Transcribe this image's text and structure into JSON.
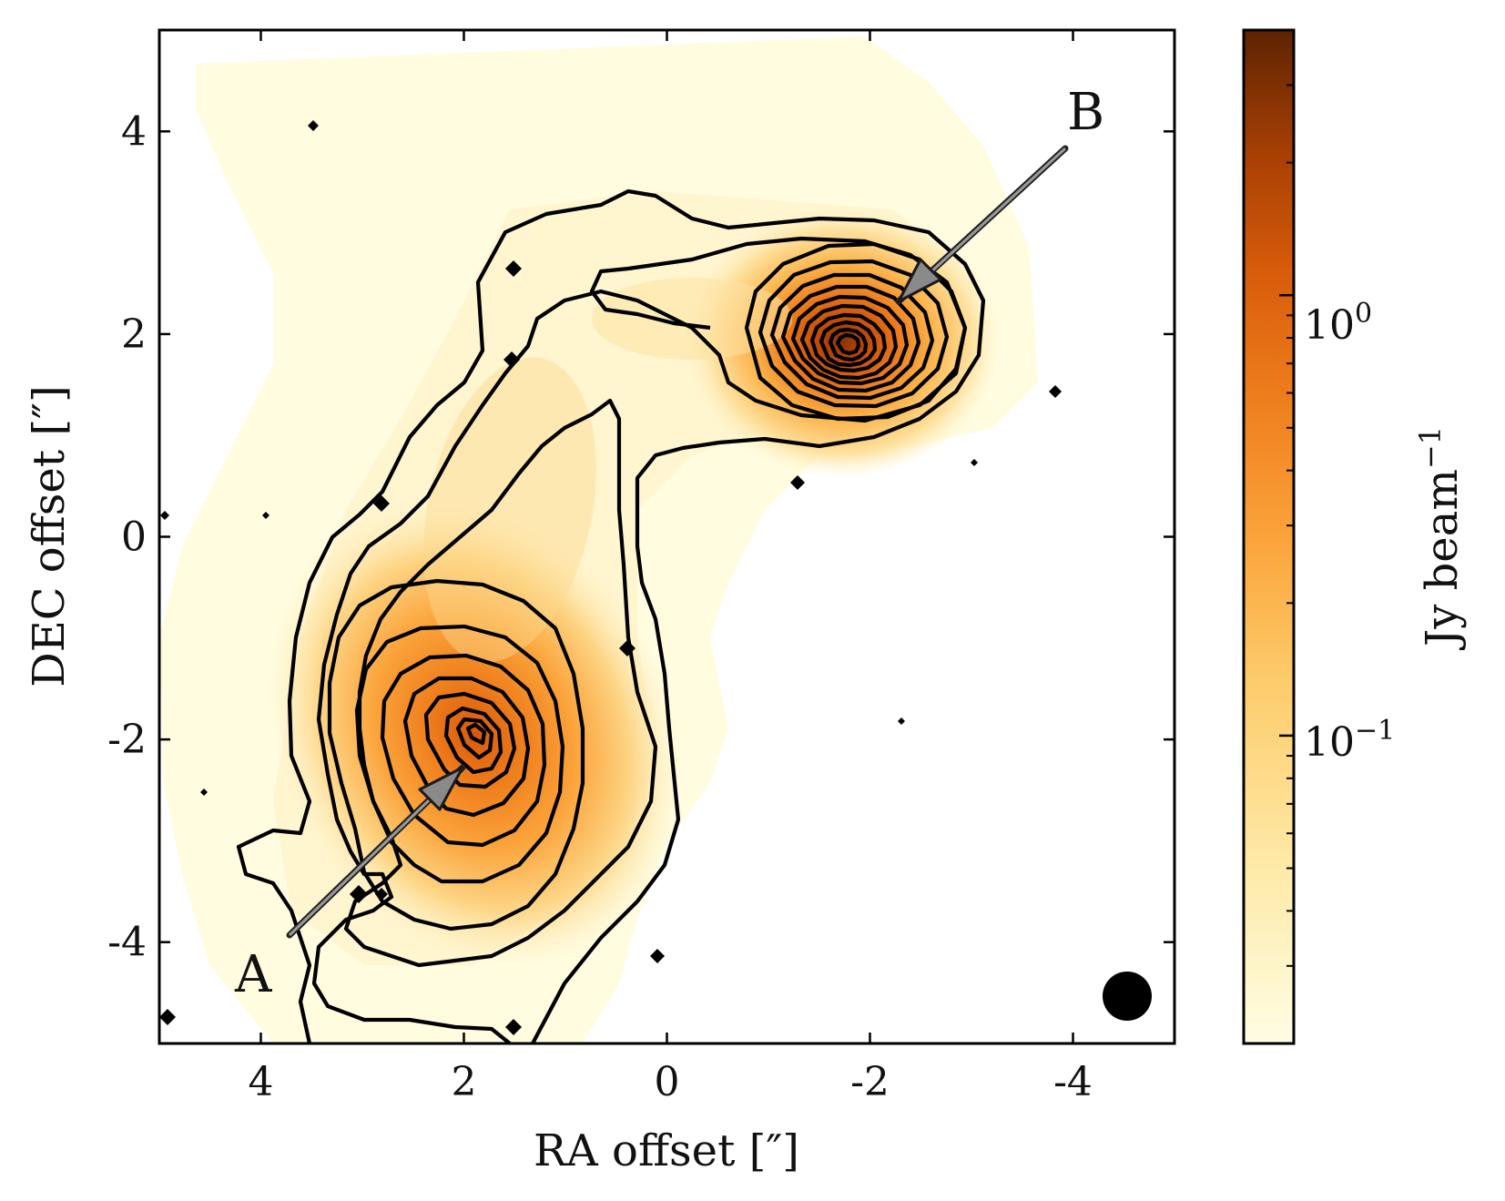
{
  "chart_data": {
    "type": "heatmap",
    "title": "",
    "xlabel": "RA offset [″]",
    "ylabel": "DEC offset [″]",
    "xlim": [
      5,
      -5
    ],
    "ylim": [
      -5,
      5
    ],
    "x_ticks": [
      4,
      2,
      0,
      -2,
      -4
    ],
    "y_ticks": [
      4,
      2,
      0,
      -2,
      -4
    ],
    "x_tick_labels": [
      "4",
      "2",
      "0",
      "-2",
      "-4"
    ],
    "y_tick_labels": [
      "4",
      "2",
      "0",
      "-2",
      "-4"
    ],
    "colormap": "YlOrBr",
    "colormap_stops": [
      "#fffde3",
      "#fee9a6",
      "#fdcb6a",
      "#fba33a",
      "#ee7d1c",
      "#d85c0b",
      "#a63f04",
      "#5e2303"
    ],
    "colorbar": {
      "label": "Jy beam−1",
      "label_main": "Jy beam",
      "label_exponent": "−1",
      "scale": "log",
      "range": [
        0.02,
        4.0
      ],
      "major_ticks": [
        0.1,
        1.0
      ],
      "major_tick_labels": [
        "10−1",
        "10⁰"
      ],
      "label_major_1_base": "10",
      "label_major_1_exp": "−1",
      "label_major_2_base": "10",
      "label_major_2_exp": "0",
      "minor_ticks": [
        0.03,
        0.04,
        0.05,
        0.06,
        0.07,
        0.08,
        0.09,
        0.2,
        0.3,
        0.4,
        0.5,
        0.6,
        0.7,
        0.8,
        0.9,
        2.0,
        3.0
      ]
    },
    "sources": [
      {
        "name": "A",
        "ra": 1.85,
        "dec": -2.05,
        "peak_flux_jy_beam": 0.45
      },
      {
        "name": "B",
        "ra": -1.65,
        "dec": 1.95,
        "peak_flux_jy_beam": 2.0
      }
    ],
    "annotations": [
      {
        "text": "A",
        "points_to_source": "A",
        "label_ra": 4.0,
        "label_dec": -4.2
      },
      {
        "text": "B",
        "points_to_source": "B",
        "label_ra": -4.2,
        "label_dec": 4.15
      }
    ],
    "beam": {
      "ra": -4.5,
      "dec": -4.5,
      "size_arcsec": 0.45,
      "shape": "circle"
    },
    "contours": {
      "color": "#000000",
      "levels_around_A": 10,
      "levels_around_B": 12,
      "outer_levels": 3
    }
  }
}
